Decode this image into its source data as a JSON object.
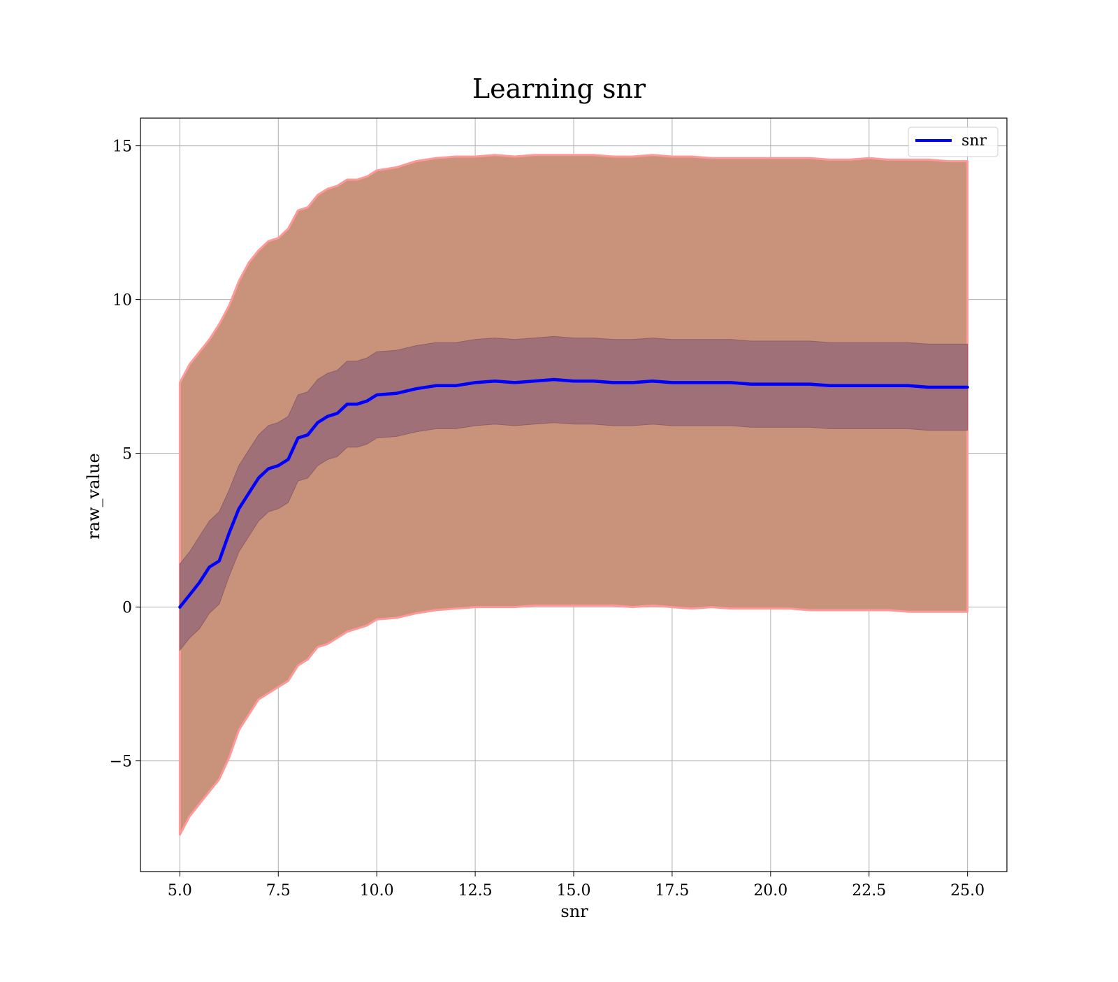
{
  "chart_data": {
    "type": "area",
    "title": "Learning snr",
    "xlabel": "snr",
    "ylabel": "raw_value",
    "xlim": [
      4.0,
      26.0
    ],
    "ylim": [
      -8.6,
      15.9
    ],
    "grid": true,
    "legend": {
      "placement": "top-right",
      "entries": [
        "snr"
      ]
    },
    "xticks": [
      5.0,
      7.5,
      10.0,
      12.5,
      15.0,
      17.5,
      20.0,
      22.5,
      25.0
    ],
    "xtick_labels": [
      "5.0",
      "7.5",
      "10.0",
      "12.5",
      "15.0",
      "17.5",
      "20.0",
      "22.5",
      "25.0"
    ],
    "yticks": [
      -5,
      0,
      5,
      10,
      15
    ],
    "ytick_labels": [
      "−5",
      "0",
      "5",
      "10",
      "15"
    ],
    "colors": {
      "line": "#0000ff",
      "outer_band": "#c8937a",
      "outer_band_edge": "#ff9999",
      "inner_band": "#a07078",
      "grid": "#b0b0b0",
      "axes": "#000000"
    },
    "series": [
      {
        "name": "snr",
        "x": [
          5.0,
          5.25,
          5.5,
          5.75,
          6.0,
          6.25,
          6.5,
          6.75,
          7.0,
          7.25,
          7.5,
          7.75,
          8.0,
          8.25,
          8.5,
          8.75,
          9.0,
          9.25,
          9.5,
          9.75,
          10.0,
          10.5,
          11.0,
          11.5,
          12.0,
          12.5,
          13.0,
          13.5,
          14.0,
          14.5,
          15.0,
          15.5,
          16.0,
          16.5,
          17.0,
          17.5,
          18.0,
          18.5,
          19.0,
          19.5,
          20.0,
          20.5,
          21.0,
          21.5,
          22.0,
          22.5,
          23.0,
          23.5,
          24.0,
          24.5,
          25.0
        ],
        "y": [
          0.0,
          0.4,
          0.8,
          1.3,
          1.5,
          2.4,
          3.2,
          3.7,
          4.2,
          4.5,
          4.6,
          4.8,
          5.5,
          5.6,
          6.0,
          6.2,
          6.3,
          6.6,
          6.6,
          6.7,
          6.9,
          6.95,
          7.1,
          7.2,
          7.2,
          7.3,
          7.35,
          7.3,
          7.35,
          7.4,
          7.35,
          7.35,
          7.3,
          7.3,
          7.35,
          7.3,
          7.3,
          7.3,
          7.3,
          7.25,
          7.25,
          7.25,
          7.25,
          7.2,
          7.2,
          7.2,
          7.2,
          7.2,
          7.15,
          7.15,
          7.15
        ],
        "inner_upper": [
          1.4,
          1.8,
          2.3,
          2.8,
          3.1,
          3.8,
          4.6,
          5.1,
          5.6,
          5.9,
          6.0,
          6.2,
          6.9,
          7.0,
          7.4,
          7.6,
          7.7,
          8.0,
          8.0,
          8.1,
          8.3,
          8.35,
          8.5,
          8.6,
          8.6,
          8.7,
          8.75,
          8.7,
          8.75,
          8.8,
          8.75,
          8.75,
          8.7,
          8.7,
          8.75,
          8.7,
          8.7,
          8.7,
          8.7,
          8.65,
          8.65,
          8.65,
          8.65,
          8.6,
          8.6,
          8.6,
          8.6,
          8.6,
          8.55,
          8.55,
          8.55
        ],
        "inner_lower": [
          -1.4,
          -1.0,
          -0.7,
          -0.2,
          0.1,
          1.0,
          1.8,
          2.3,
          2.8,
          3.1,
          3.2,
          3.4,
          4.1,
          4.2,
          4.6,
          4.8,
          4.9,
          5.2,
          5.2,
          5.3,
          5.5,
          5.55,
          5.7,
          5.8,
          5.8,
          5.9,
          5.95,
          5.9,
          5.95,
          6.0,
          5.95,
          5.95,
          5.9,
          5.9,
          5.95,
          5.9,
          5.9,
          5.9,
          5.9,
          5.85,
          5.85,
          5.85,
          5.85,
          5.8,
          5.8,
          5.8,
          5.8,
          5.8,
          5.75,
          5.75,
          5.75
        ],
        "outer_upper": [
          7.3,
          7.9,
          8.3,
          8.7,
          9.2,
          9.8,
          10.6,
          11.2,
          11.6,
          11.9,
          12.0,
          12.3,
          12.9,
          13.0,
          13.4,
          13.6,
          13.7,
          13.9,
          13.9,
          14.0,
          14.2,
          14.3,
          14.5,
          14.6,
          14.65,
          14.65,
          14.7,
          14.65,
          14.7,
          14.7,
          14.7,
          14.7,
          14.65,
          14.65,
          14.7,
          14.65,
          14.65,
          14.6,
          14.6,
          14.6,
          14.6,
          14.6,
          14.6,
          14.55,
          14.55,
          14.6,
          14.55,
          14.55,
          14.55,
          14.5,
          14.5
        ],
        "outer_lower": [
          -7.4,
          -6.8,
          -6.4,
          -6.0,
          -5.6,
          -4.9,
          -4.0,
          -3.5,
          -3.0,
          -2.8,
          -2.6,
          -2.4,
          -1.9,
          -1.7,
          -1.3,
          -1.2,
          -1.0,
          -0.8,
          -0.7,
          -0.6,
          -0.4,
          -0.35,
          -0.2,
          -0.1,
          -0.05,
          0.0,
          0.0,
          0.0,
          0.05,
          0.05,
          0.05,
          0.05,
          0.05,
          0.0,
          0.05,
          0.0,
          -0.05,
          0.0,
          -0.05,
          -0.05,
          -0.05,
          -0.05,
          -0.1,
          -0.1,
          -0.1,
          -0.1,
          -0.1,
          -0.15,
          -0.15,
          -0.15,
          -0.15
        ]
      }
    ]
  }
}
